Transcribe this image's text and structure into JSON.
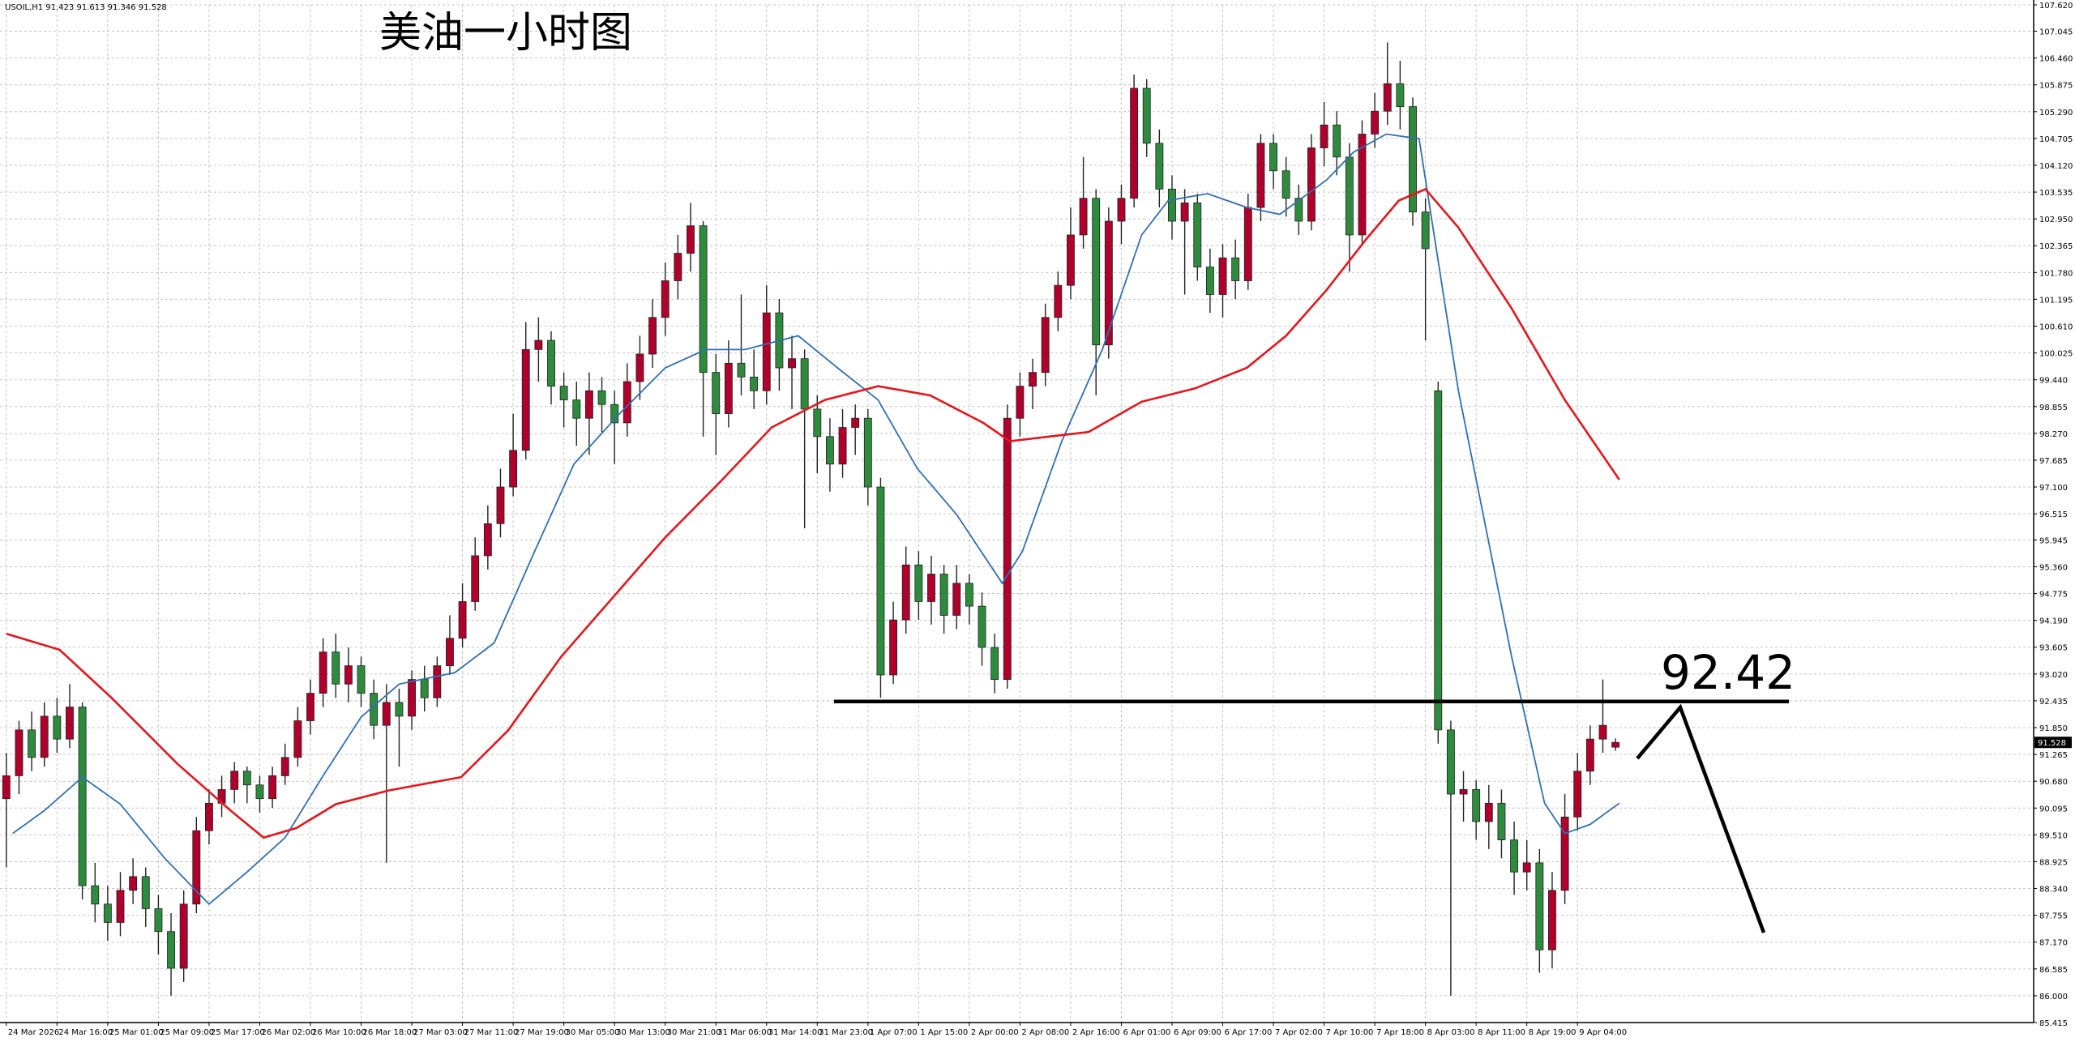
{
  "chart_data": {
    "type": "candlestick",
    "title": "美油一小时图",
    "info": "USOIL,H1  91.423 91.613 91.346 91.528",
    "up_color": "#b0002c",
    "down_color": "#2e8b3e",
    "grid": true,
    "xlim": [
      -0.5,
      160
    ],
    "ylim": [
      85.415,
      107.62
    ],
    "yticks": [
      85.415,
      {
        "value": 86,
        "label": "86.000"
      },
      86.585,
      {
        "value": 87.17,
        "label": "87.170"
      },
      87.755,
      {
        "value": 88.34,
        "label": "88.340"
      },
      88.925,
      {
        "value": 89.51,
        "label": "89.510"
      },
      90.095,
      {
        "value": 90.68,
        "label": "90.680"
      },
      91.265,
      {
        "value": 91.85,
        "label": "91.850"
      },
      92.435,
      {
        "value": 93.02,
        "label": "93.020"
      },
      93.605,
      {
        "value": 94.19,
        "label": "94.190"
      },
      94.775,
      {
        "value": 95.36,
        "label": "95.360"
      },
      95.945,
      96.515,
      {
        "value": 97.1,
        "label": "97.100"
      },
      97.685,
      {
        "value": 98.27,
        "label": "98.270"
      },
      98.855,
      {
        "value": 99.44,
        "label": "99.440"
      },
      100.025,
      {
        "value": 100.61,
        "label": "100.610"
      },
      101.195,
      {
        "value": 101.78,
        "label": "101.780"
      },
      102.365,
      {
        "value": 102.95,
        "label": "102.950"
      },
      103.535,
      {
        "value": 104.12,
        "label": "104.120"
      },
      104.705,
      {
        "value": 105.29,
        "label": "105.290"
      },
      105.875,
      {
        "value": 106.46,
        "label": "106.460"
      },
      107.045,
      {
        "value": 107.62,
        "label": "107.620"
      }
    ],
    "xticks": [
      {
        "value": 0,
        "label": "24 Mar 2026"
      },
      {
        "value": 4,
        "label": "24 Mar 16:00"
      },
      {
        "value": 8,
        "label": "25 Mar 01:00"
      },
      {
        "value": 12,
        "label": "25 Mar 09:00"
      },
      {
        "value": 16,
        "label": "25 Mar 17:00"
      },
      {
        "value": 20,
        "label": "26 Mar 02:00"
      },
      {
        "value": 24,
        "label": "26 Mar 10:00"
      },
      {
        "value": 28,
        "label": "26 Mar 18:00"
      },
      {
        "value": 32,
        "label": "27 Mar 03:00"
      },
      {
        "value": 36,
        "label": "27 Mar 11:00"
      },
      {
        "value": 40,
        "label": "27 Mar 19:00"
      },
      {
        "value": 44,
        "label": "30 Mar 05:00"
      },
      {
        "value": 48,
        "label": "30 Mar 13:00"
      },
      {
        "value": 52,
        "label": "30 Mar 21:00"
      },
      {
        "value": 56,
        "label": "31 Mar 06:00"
      },
      {
        "value": 60,
        "label": "31 Mar 14:00"
      },
      {
        "value": 64,
        "label": "31 Mar 23:00"
      },
      {
        "value": 68,
        "label": "1 Apr 07:00"
      },
      {
        "value": 72,
        "label": "1 Apr 15:00"
      },
      {
        "value": 76,
        "label": "2 Apr 00:00"
      },
      {
        "value": 80,
        "label": "2 Apr 08:00"
      },
      {
        "value": 84,
        "label": "2 Apr 16:00"
      },
      {
        "value": 88,
        "label": "6 Apr 01:00"
      },
      {
        "value": 92,
        "label": "6 Apr 09:00"
      },
      {
        "value": 96,
        "label": "6 Apr 17:00"
      },
      {
        "value": 100,
        "label": "7 Apr 02:00"
      },
      {
        "value": 104,
        "label": "7 Apr 10:00"
      },
      {
        "value": 108,
        "label": "7 Apr 18:00"
      },
      {
        "value": 112,
        "label": "8 Apr 03:00"
      },
      {
        "value": 116,
        "label": "8 Apr 11:00"
      },
      {
        "value": 120,
        "label": "8 Apr 19:00"
      },
      {
        "value": 124,
        "label": "9 Apr 04:00"
      }
    ],
    "ohlc": [
      [
        90.3,
        91.3,
        88.8,
        90.8
      ],
      [
        90.8,
        92.0,
        90.4,
        91.8
      ],
      [
        91.8,
        92.2,
        90.9,
        91.2
      ],
      [
        91.2,
        92.4,
        91.0,
        92.1
      ],
      [
        92.1,
        92.5,
        91.3,
        91.6
      ],
      [
        91.6,
        92.8,
        91.4,
        92.3
      ],
      [
        92.3,
        92.4,
        88.1,
        88.4
      ],
      [
        88.4,
        88.9,
        87.6,
        88.0
      ],
      [
        88.0,
        88.4,
        87.2,
        87.6
      ],
      [
        87.6,
        88.7,
        87.3,
        88.3
      ],
      [
        88.3,
        89.0,
        88.0,
        88.6
      ],
      [
        88.6,
        88.8,
        87.5,
        87.9
      ],
      [
        87.9,
        88.2,
        86.9,
        87.4
      ],
      [
        87.4,
        87.8,
        86.0,
        86.6
      ],
      [
        86.6,
        88.3,
        86.3,
        88.0
      ],
      [
        88.0,
        89.9,
        87.8,
        89.6
      ],
      [
        89.6,
        90.5,
        89.3,
        90.2
      ],
      [
        90.2,
        90.8,
        89.9,
        90.5
      ],
      [
        90.5,
        91.1,
        90.2,
        90.9
      ],
      [
        90.9,
        91.0,
        90.2,
        90.6
      ],
      [
        90.6,
        90.8,
        90.0,
        90.3
      ],
      [
        90.3,
        91.0,
        90.1,
        90.8
      ],
      [
        90.8,
        91.5,
        90.6,
        91.2
      ],
      [
        91.2,
        92.3,
        91.0,
        92.0
      ],
      [
        92.0,
        92.9,
        91.7,
        92.6
      ],
      [
        92.6,
        93.8,
        92.3,
        93.5
      ],
      [
        93.5,
        93.9,
        92.5,
        92.8
      ],
      [
        92.8,
        93.6,
        92.4,
        93.2
      ],
      [
        93.2,
        93.4,
        92.3,
        92.6
      ],
      [
        92.6,
        92.9,
        91.6,
        91.9
      ],
      [
        91.9,
        92.8,
        88.9,
        92.4
      ],
      [
        92.4,
        92.7,
        91.0,
        92.1
      ],
      [
        92.1,
        93.1,
        91.8,
        92.9
      ],
      [
        92.9,
        93.2,
        92.2,
        92.5
      ],
      [
        92.5,
        93.4,
        92.3,
        93.2
      ],
      [
        93.2,
        94.3,
        93.0,
        93.8
      ],
      [
        93.8,
        95.0,
        93.6,
        94.6
      ],
      [
        94.6,
        96.0,
        94.4,
        95.6
      ],
      [
        95.6,
        96.7,
        95.3,
        96.3
      ],
      [
        96.3,
        97.5,
        96.0,
        97.1
      ],
      [
        97.1,
        98.7,
        96.9,
        97.9
      ],
      [
        97.9,
        100.7,
        97.7,
        100.1
      ],
      [
        100.1,
        100.8,
        99.4,
        100.3
      ],
      [
        100.3,
        100.5,
        98.9,
        99.3
      ],
      [
        99.3,
        99.6,
        98.4,
        99.0
      ],
      [
        99.0,
        99.4,
        98.0,
        98.6
      ],
      [
        98.6,
        99.6,
        97.8,
        99.2
      ],
      [
        99.2,
        99.5,
        98.3,
        98.9
      ],
      [
        98.9,
        99.2,
        97.6,
        98.5
      ],
      [
        98.5,
        99.8,
        98.2,
        99.4
      ],
      [
        99.4,
        100.4,
        99.0,
        100.0
      ],
      [
        100.0,
        101.2,
        99.7,
        100.8
      ],
      [
        100.8,
        102.0,
        100.4,
        101.6
      ],
      [
        101.6,
        102.6,
        101.2,
        102.2
      ],
      [
        102.2,
        103.3,
        101.8,
        102.8
      ],
      [
        102.8,
        102.9,
        98.2,
        99.6
      ],
      [
        99.6,
        100.0,
        97.8,
        98.7
      ],
      [
        98.7,
        100.3,
        98.4,
        99.8
      ],
      [
        99.8,
        101.3,
        99.1,
        99.5
      ],
      [
        99.5,
        100.1,
        98.8,
        99.2
      ],
      [
        99.2,
        101.5,
        98.9,
        100.9
      ],
      [
        100.9,
        101.2,
        99.2,
        99.7
      ],
      [
        99.7,
        100.4,
        98.8,
        99.9
      ],
      [
        99.9,
        100.1,
        96.2,
        98.8
      ],
      [
        98.8,
        99.1,
        97.4,
        98.2
      ],
      [
        98.2,
        98.6,
        97.0,
        97.6
      ],
      [
        97.6,
        98.8,
        97.3,
        98.4
      ],
      [
        98.4,
        98.9,
        97.8,
        98.6
      ],
      [
        98.6,
        98.8,
        96.7,
        97.1
      ],
      [
        97.1,
        97.3,
        92.5,
        93.0
      ],
      [
        93.0,
        94.6,
        92.8,
        94.2
      ],
      [
        94.2,
        95.8,
        93.9,
        95.4
      ],
      [
        95.4,
        95.7,
        94.2,
        94.6
      ],
      [
        94.6,
        95.6,
        94.1,
        95.2
      ],
      [
        95.2,
        95.4,
        93.9,
        94.3
      ],
      [
        94.3,
        95.4,
        94.0,
        95.0
      ],
      [
        95.0,
        95.2,
        94.1,
        94.5
      ],
      [
        94.5,
        94.8,
        93.2,
        93.6
      ],
      [
        93.6,
        93.9,
        92.6,
        92.9
      ],
      [
        92.9,
        98.9,
        92.7,
        98.6
      ],
      [
        98.6,
        99.6,
        98.2,
        99.3
      ],
      [
        99.3,
        99.9,
        98.8,
        99.6
      ],
      [
        99.6,
        101.1,
        99.3,
        100.8
      ],
      [
        100.8,
        101.8,
        100.5,
        101.5
      ],
      [
        101.5,
        103.2,
        101.2,
        102.6
      ],
      [
        102.6,
        104.3,
        102.3,
        103.4
      ],
      [
        103.4,
        103.6,
        99.1,
        100.2
      ],
      [
        100.2,
        103.2,
        99.9,
        102.9
      ],
      [
        102.9,
        103.7,
        102.4,
        103.4
      ],
      [
        103.4,
        106.1,
        103.2,
        105.8
      ],
      [
        105.8,
        106.0,
        104.3,
        104.6
      ],
      [
        104.6,
        104.9,
        103.2,
        103.6
      ],
      [
        103.6,
        103.9,
        102.5,
        102.9
      ],
      [
        102.9,
        103.6,
        101.3,
        103.3
      ],
      [
        103.3,
        103.5,
        101.6,
        101.9
      ],
      [
        101.9,
        102.3,
        100.9,
        101.3
      ],
      [
        101.3,
        102.4,
        100.8,
        102.1
      ],
      [
        102.1,
        102.5,
        101.2,
        101.6
      ],
      [
        101.6,
        103.5,
        101.4,
        103.2
      ],
      [
        103.2,
        104.8,
        102.9,
        104.6
      ],
      [
        104.6,
        104.8,
        103.6,
        104.0
      ],
      [
        104.0,
        104.3,
        103.0,
        103.4
      ],
      [
        103.4,
        103.7,
        102.6,
        102.9
      ],
      [
        102.9,
        104.8,
        102.7,
        104.5
      ],
      [
        104.5,
        105.5,
        104.1,
        105.0
      ],
      [
        105.0,
        105.3,
        103.9,
        104.3
      ],
      [
        104.3,
        104.6,
        101.8,
        102.6
      ],
      [
        102.6,
        105.1,
        102.4,
        104.8
      ],
      [
        104.8,
        105.7,
        104.5,
        105.3
      ],
      [
        105.3,
        106.8,
        105.0,
        105.9
      ],
      [
        105.9,
        106.4,
        104.9,
        105.4
      ],
      [
        105.4,
        105.6,
        102.8,
        103.1
      ],
      [
        103.1,
        103.4,
        100.3,
        102.3
      ],
      [
        99.2,
        99.4,
        91.5,
        91.8
      ],
      [
        91.8,
        92.0,
        86.0,
        90.4
      ],
      [
        90.4,
        90.9,
        89.8,
        90.5
      ],
      [
        90.5,
        90.7,
        89.4,
        89.8
      ],
      [
        89.8,
        90.6,
        89.2,
        90.2
      ],
      [
        90.2,
        90.5,
        89.0,
        89.4
      ],
      [
        89.4,
        89.8,
        88.2,
        88.7
      ],
      [
        88.7,
        89.4,
        88.3,
        88.9
      ],
      [
        88.9,
        89.2,
        86.5,
        87.0
      ],
      [
        87.0,
        88.7,
        86.6,
        88.3
      ],
      [
        88.3,
        90.4,
        88.0,
        89.9
      ],
      [
        89.9,
        91.3,
        89.6,
        90.9
      ],
      [
        90.9,
        91.9,
        90.6,
        91.6
      ],
      [
        91.6,
        92.9,
        91.3,
        91.9
      ],
      [
        91.423,
        91.613,
        91.346,
        91.528
      ]
    ],
    "series": [
      {
        "color": "#2f6fb5",
        "x": [
          0.5,
          3,
          6,
          9,
          12.5,
          16,
          19,
          22,
          25,
          28,
          31,
          35.4,
          38.5,
          41.7,
          44.8,
          48.4,
          52,
          55.2,
          58.3,
          62.5,
          65.6,
          68.8,
          71.9,
          75,
          78.6,
          80.2,
          83.3,
          86.5,
          89.6,
          91.7,
          94.8,
          97.9,
          100.5,
          104.2,
          106.3,
          108.9,
          111.5,
          114.6,
          118.8,
          121.4,
          123,
          125,
          127.3
        ],
        "values": [
          89.54,
          90.04,
          90.77,
          90.18,
          89.0,
          88.0,
          88.7,
          89.45,
          90.8,
          92.08,
          92.8,
          93.05,
          93.7,
          95.7,
          97.6,
          98.7,
          99.7,
          100.1,
          100.1,
          100.4,
          99.7,
          99.0,
          97.5,
          96.5,
          95.0,
          95.7,
          98.1,
          100.1,
          102.6,
          103.35,
          103.5,
          103.2,
          103.05,
          103.8,
          104.4,
          104.8,
          104.7,
          99.2,
          93.4,
          90.2,
          89.54,
          89.74,
          90.2
        ]
      },
      {
        "color": "#e8141b",
        "x": [
          0,
          4.2,
          8.3,
          13.5,
          17.7,
          20.3,
          22.9,
          26,
          30.2,
          35.9,
          39.6,
          43.8,
          47.9,
          52,
          56.3,
          60.4,
          64.6,
          68.8,
          72.9,
          77.1,
          79.2,
          82.3,
          85.4,
          89.6,
          93.8,
          97.9,
          101,
          104.2,
          107.3,
          109.9,
          112,
          114.6,
          118.8,
          123,
          127.3
        ],
        "values": [
          93.9,
          93.55,
          92.5,
          91.06,
          90.04,
          89.45,
          89.66,
          90.18,
          90.48,
          90.77,
          91.79,
          93.4,
          94.7,
          96.0,
          97.2,
          98.4,
          99.0,
          99.3,
          99.1,
          98.5,
          98.1,
          98.2,
          98.3,
          98.96,
          99.25,
          99.7,
          100.4,
          101.4,
          102.5,
          103.35,
          103.6,
          102.76,
          101.0,
          99.0,
          97.26
        ]
      }
    ],
    "hline": 92.42,
    "current_price": 91.528
  }
}
